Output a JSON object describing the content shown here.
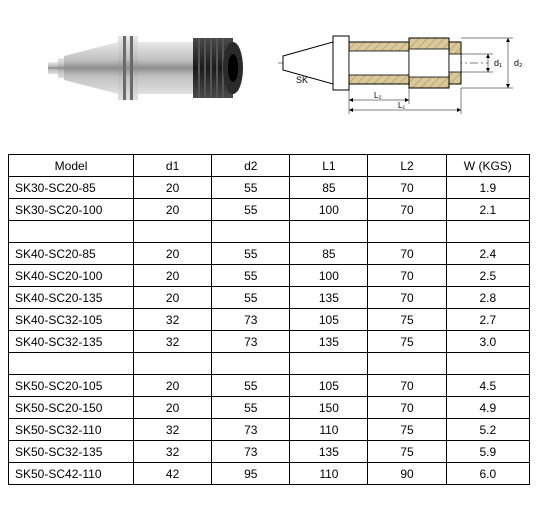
{
  "diagram": {
    "sk_label": "SK",
    "dim_d1": "d₁",
    "dim_d2": "d₂",
    "dim_l1": "L₁",
    "dim_l2": "L₂",
    "photo_colors": {
      "body": "#b8b8b8",
      "body_dark": "#6a6a6a",
      "grip": "#2a2a2a",
      "highlight": "#e8e8e8"
    },
    "drawing_colors": {
      "stroke": "#000000",
      "hatch": "#b89b5e",
      "fill": "#ffffff",
      "dim_line": "#000000"
    }
  },
  "table": {
    "columns": [
      "Model",
      "d1",
      "d2",
      "L1",
      "L2",
      "W (KGS)"
    ],
    "groups": [
      {
        "rows": [
          [
            "SK30-SC20-85",
            "20",
            "55",
            "85",
            "70",
            "1.9"
          ],
          [
            "SK30-SC20-100",
            "20",
            "55",
            "100",
            "70",
            "2.1"
          ]
        ]
      },
      {
        "rows": [
          [
            "SK40-SC20-85",
            "20",
            "55",
            "85",
            "70",
            "2.4"
          ],
          [
            "SK40-SC20-100",
            "20",
            "55",
            "100",
            "70",
            "2.5"
          ],
          [
            "SK40-SC20-135",
            "20",
            "55",
            "135",
            "70",
            "2.8"
          ],
          [
            "SK40-SC32-105",
            "32",
            "73",
            "105",
            "75",
            "2.7"
          ],
          [
            "SK40-SC32-135",
            "32",
            "73",
            "135",
            "75",
            "3.0"
          ]
        ]
      },
      {
        "rows": [
          [
            "SK50-SC20-105",
            "20",
            "55",
            "105",
            "70",
            "4.5"
          ],
          [
            "SK50-SC20-150",
            "20",
            "55",
            "150",
            "70",
            "4.9"
          ],
          [
            "SK50-SC32-110",
            "32",
            "73",
            "110",
            "75",
            "5.2"
          ],
          [
            "SK50-SC32-135",
            "32",
            "73",
            "135",
            "75",
            "5.9"
          ],
          [
            "SK50-SC42-110",
            "42",
            "95",
            "110",
            "90",
            "6.0"
          ]
        ]
      }
    ]
  }
}
